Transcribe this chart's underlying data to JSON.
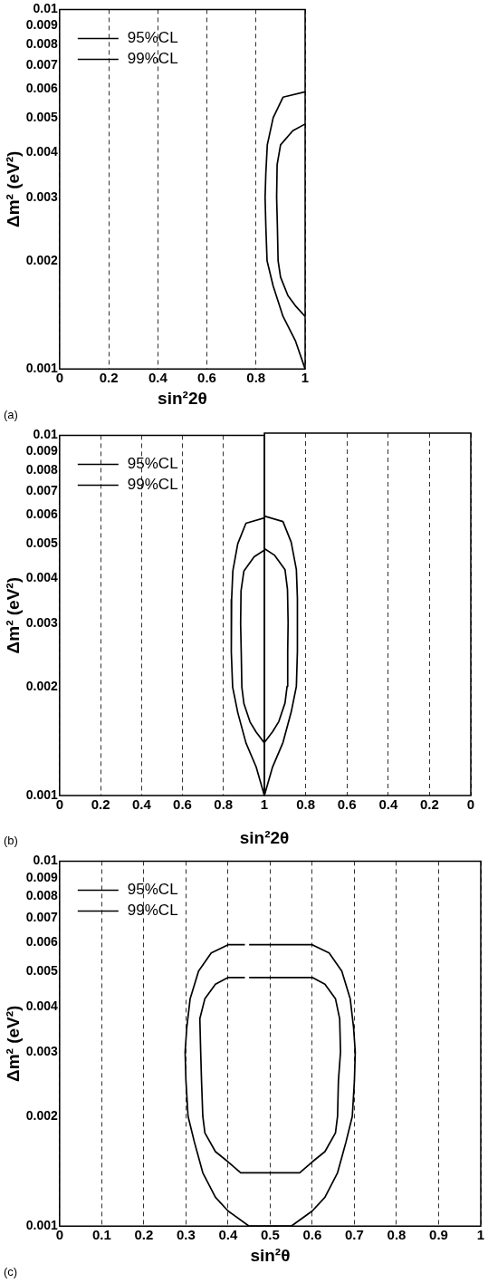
{
  "chart_data": [
    {
      "type": "line",
      "xlabel": "sin²2θ",
      "ylabel": "Δm² (eV²)",
      "annotations": [
        "(a)"
      ],
      "log": "y",
      "grid": "x",
      "legend": "top left",
      "marker": "none",
      "line_style": "solid",
      "xlim": [
        0,
        1
      ],
      "xticks": [
        0,
        0.2,
        0.4,
        0.6,
        0.8,
        1
      ],
      "ylim": [
        0.001,
        0.01
      ],
      "yticks": [
        0.001,
        0.002,
        0.003,
        0.004,
        0.005,
        0.006,
        0.007,
        0.008,
        0.009,
        0.01
      ],
      "series": [
        {
          "name": "95%CL",
          "color": "#000000",
          "x": [
            1,
            0.95,
            0.9,
            0.886,
            0.884,
            0.887,
            0.89,
            0.9,
            0.93,
            0.96,
            1
          ],
          "values": [
            0.0048,
            0.0046,
            0.0042,
            0.0037,
            0.003,
            0.0025,
            0.002,
            0.0018,
            0.0016,
            0.0015,
            0.0014
          ]
        },
        {
          "name": "99%CL",
          "color": "#000000",
          "x": [
            1,
            0.91,
            0.87,
            0.846,
            0.84,
            0.837,
            0.84,
            0.845,
            0.87,
            0.91,
            0.96,
            1
          ],
          "values": [
            0.0059,
            0.0057,
            0.005,
            0.0042,
            0.0035,
            0.003,
            0.0025,
            0.002,
            0.0017,
            0.0014,
            0.0012,
            0.001
          ]
        }
      ]
    },
    {
      "type": "line",
      "ylabel": "Δm² (eV²)",
      "annotations": [
        "(b)"
      ],
      "log": "y",
      "grid": "x",
      "legend": "top left",
      "marker": "none",
      "line_style": "solid",
      "xlim": [
        0,
        1
      ],
      "xticks": [
        0,
        0.2,
        0.4,
        0.6,
        0.8,
        1
      ],
      "ylim": [
        0.001,
        0.01
      ],
      "yticks": [
        0.001,
        0.002,
        0.003,
        0.004,
        0.005,
        0.006,
        0.007,
        0.008,
        0.009,
        0.01
      ],
      "series": [
        {
          "name": "95%CL",
          "color": "#000000",
          "x": [
            1,
            0.95,
            0.9,
            0.886,
            0.884,
            0.887,
            0.89,
            0.9,
            0.93,
            0.96,
            1
          ],
          "values": [
            0.0048,
            0.0046,
            0.0042,
            0.0037,
            0.003,
            0.0025,
            0.002,
            0.0018,
            0.0016,
            0.0015,
            0.0014
          ]
        },
        {
          "name": "99%CL",
          "color": "#000000",
          "x": [
            1,
            0.91,
            0.87,
            0.846,
            0.84,
            0.837,
            0.84,
            0.845,
            0.87,
            0.91,
            0.96,
            1
          ],
          "values": [
            0.0059,
            0.0057,
            0.005,
            0.0042,
            0.0035,
            0.003,
            0.0025,
            0.002,
            0.0017,
            0.0014,
            0.0012,
            0.001
          ]
        }
      ]
    },
    {
      "type": "line",
      "xlabel": "sin²2θ",
      "log": "y",
      "grid": "x",
      "marker": "none",
      "line_style": "solid",
      "tick_labels": "x",
      "xlim": [
        1,
        0
      ],
      "xticks": [
        {
          "value": 1,
          "label": null
        },
        0.8,
        0.6,
        0.4,
        0.2,
        0
      ],
      "ylim": [
        0.001,
        0.01
      ],
      "series": [
        {
          "color": "#000000",
          "x": [
            1,
            0.96,
            0.93,
            0.9,
            0.89,
            0.887,
            0.885,
            0.888,
            0.9,
            0.95,
            1
          ],
          "values": [
            0.0014,
            0.0015,
            0.0016,
            0.0018,
            0.002,
            0.0025,
            0.003,
            0.0037,
            0.0042,
            0.0046,
            0.0048
          ]
        },
        {
          "color": "#000000",
          "x": [
            1,
            0.96,
            0.91,
            0.87,
            0.845,
            0.84,
            0.838,
            0.842,
            0.845,
            0.87,
            0.91,
            1
          ],
          "values": [
            0.001,
            0.0012,
            0.0014,
            0.0017,
            0.002,
            0.0025,
            0.003,
            0.0035,
            0.0042,
            0.005,
            0.0057,
            0.0059
          ]
        }
      ]
    },
    {
      "type": "line",
      "xlabel": "sin²θ",
      "ylabel": "Δm² (eV²)",
      "annotations": [
        "(c)"
      ],
      "log": "y",
      "grid": "x",
      "legend": "top left",
      "marker": "none",
      "line_style": "solid",
      "xlim": [
        0,
        1
      ],
      "xticks": [
        0,
        0.1,
        0.2,
        0.3,
        0.4,
        0.5,
        0.6,
        0.7,
        0.8,
        0.9,
        1
      ],
      "ylim": [
        0.001,
        0.01
      ],
      "yticks": [
        0.001,
        0.002,
        0.003,
        0.004,
        0.005,
        0.006,
        0.007,
        0.008,
        0.009,
        0.01
      ],
      "series": [
        {
          "name": "95%CL",
          "color": "#000000",
          "x": [
            0.45,
            0.6,
            0.63,
            0.655,
            0.665,
            0.667,
            0.662,
            0.66,
            0.655,
            0.63,
            0.6,
            0.57,
            0.43,
            0.4,
            0.37,
            0.345,
            0.34,
            0.337,
            0.335,
            0.333,
            0.345,
            0.37,
            0.4,
            0.44
          ],
          "values": [
            0.0048,
            0.0048,
            0.0046,
            0.0042,
            0.0037,
            0.003,
            0.0025,
            0.002,
            0.0018,
            0.0016,
            0.0015,
            0.0014,
            0.0014,
            0.0015,
            0.0016,
            0.0018,
            0.002,
            0.0025,
            0.003,
            0.0037,
            0.0042,
            0.0046,
            0.0048,
            0.0048
          ]
        },
        {
          "name": "99%CL",
          "color": "#000000",
          "x": [
            0.45,
            0.6,
            0.64,
            0.67,
            0.69,
            0.698,
            0.702,
            0.7,
            0.695,
            0.68,
            0.66,
            0.63,
            0.6,
            0.55,
            0.45,
            0.4,
            0.37,
            0.34,
            0.32,
            0.305,
            0.3,
            0.298,
            0.302,
            0.31,
            0.33,
            0.36,
            0.4,
            0.44
          ],
          "values": [
            0.0059,
            0.0059,
            0.0056,
            0.005,
            0.0042,
            0.0035,
            0.003,
            0.0025,
            0.002,
            0.0017,
            0.0014,
            0.0012,
            0.0011,
            0.001,
            0.001,
            0.0011,
            0.0012,
            0.0014,
            0.0017,
            0.002,
            0.0025,
            0.003,
            0.0035,
            0.0042,
            0.005,
            0.0056,
            0.0059,
            0.0059
          ]
        }
      ]
    }
  ]
}
